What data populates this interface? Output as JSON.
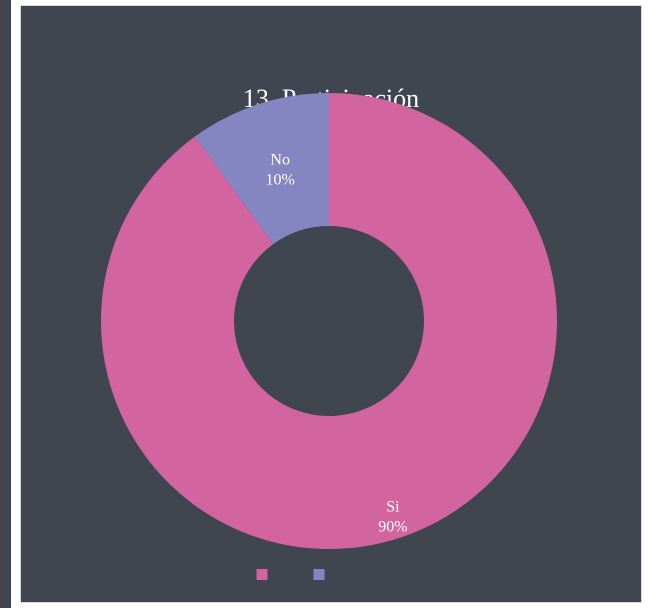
{
  "chart_data": {
    "type": "donut",
    "title": "13. Participación",
    "categories": [
      "Si",
      "No"
    ],
    "values": [
      90,
      10
    ],
    "value_labels": [
      "90%",
      "10%"
    ],
    "colors": [
      "#d264a0",
      "#8585c2"
    ],
    "legend": "bottom"
  }
}
